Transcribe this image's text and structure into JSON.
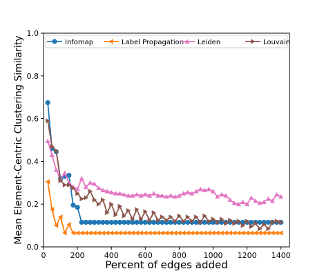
{
  "chart_data": {
    "type": "line",
    "xlabel": "Percent of edges added",
    "ylabel": "Mean Element-Centric Clustering Similarity",
    "xlim": [
      0,
      1450
    ],
    "ylim": [
      0.0,
      1.0
    ],
    "xticks": [
      0,
      200,
      400,
      600,
      800,
      1000,
      1200,
      1400
    ],
    "yticks": [
      0.0,
      0.2,
      0.4,
      0.6,
      0.8,
      1.0
    ],
    "ytick_labels": [
      "0.0",
      "0.2",
      "0.4",
      "0.6",
      "0.8",
      "1.0"
    ],
    "legend_position": "top",
    "series": [
      {
        "name": "Infomap",
        "color": "#1f77b4",
        "marker": "circle",
        "x": [
          25,
          50,
          75,
          100,
          125,
          150,
          175,
          200,
          225,
          250,
          275,
          300,
          325,
          350,
          375,
          400,
          425,
          450,
          475,
          500,
          525,
          550,
          575,
          600,
          625,
          650,
          675,
          700,
          725,
          750,
          775,
          800,
          825,
          850,
          875,
          900,
          925,
          950,
          975,
          1000,
          1025,
          1050,
          1075,
          1100,
          1125,
          1150,
          1175,
          1200,
          1225,
          1250,
          1275,
          1300,
          1325,
          1350,
          1375,
          1400
        ],
        "y": [
          0.675,
          0.46,
          0.445,
          0.32,
          0.33,
          0.335,
          0.195,
          0.185,
          0.115,
          0.115,
          0.115,
          0.115,
          0.115,
          0.115,
          0.115,
          0.115,
          0.115,
          0.115,
          0.115,
          0.115,
          0.115,
          0.115,
          0.115,
          0.115,
          0.115,
          0.115,
          0.115,
          0.115,
          0.115,
          0.115,
          0.115,
          0.115,
          0.115,
          0.115,
          0.115,
          0.115,
          0.115,
          0.115,
          0.115,
          0.115,
          0.115,
          0.115,
          0.115,
          0.115,
          0.115,
          0.115,
          0.115,
          0.115,
          0.115,
          0.115,
          0.115,
          0.115,
          0.115,
          0.115,
          0.115,
          0.115
        ]
      },
      {
        "name": "Label Propagation",
        "color": "#ff7f0e",
        "marker": "triangle-left",
        "x": [
          25,
          50,
          75,
          100,
          125,
          150,
          175,
          200,
          225,
          250,
          275,
          300,
          325,
          350,
          375,
          400,
          425,
          450,
          475,
          500,
          525,
          550,
          575,
          600,
          625,
          650,
          675,
          700,
          725,
          750,
          775,
          800,
          825,
          850,
          875,
          900,
          925,
          950,
          975,
          1000,
          1025,
          1050,
          1075,
          1100,
          1125,
          1150,
          1175,
          1200,
          1225,
          1250,
          1275,
          1300,
          1325,
          1350,
          1375,
          1400
        ],
        "y": [
          0.305,
          0.175,
          0.1,
          0.14,
          0.065,
          0.105,
          0.065,
          0.065,
          0.065,
          0.065,
          0.065,
          0.065,
          0.065,
          0.065,
          0.065,
          0.065,
          0.065,
          0.065,
          0.065,
          0.065,
          0.065,
          0.065,
          0.065,
          0.065,
          0.065,
          0.065,
          0.065,
          0.065,
          0.065,
          0.065,
          0.065,
          0.065,
          0.065,
          0.065,
          0.065,
          0.065,
          0.065,
          0.065,
          0.065,
          0.065,
          0.065,
          0.065,
          0.065,
          0.065,
          0.065,
          0.065,
          0.065,
          0.065,
          0.065,
          0.065,
          0.065,
          0.065,
          0.065,
          0.065,
          0.065,
          0.065
        ]
      },
      {
        "name": "Leiden",
        "color": "#e377c2",
        "marker": "triangle-up",
        "x": [
          25,
          50,
          75,
          100,
          125,
          150,
          175,
          200,
          225,
          250,
          275,
          300,
          325,
          350,
          375,
          400,
          425,
          450,
          475,
          500,
          525,
          550,
          575,
          600,
          625,
          650,
          675,
          700,
          725,
          750,
          775,
          800,
          825,
          850,
          875,
          900,
          925,
          950,
          975,
          1000,
          1025,
          1050,
          1075,
          1100,
          1125,
          1150,
          1175,
          1200,
          1225,
          1250,
          1275,
          1300,
          1325,
          1350,
          1375,
          1400
        ],
        "y": [
          0.495,
          0.43,
          0.36,
          0.315,
          0.345,
          0.3,
          0.28,
          0.27,
          0.32,
          0.28,
          0.3,
          0.295,
          0.275,
          0.265,
          0.26,
          0.255,
          0.25,
          0.25,
          0.245,
          0.24,
          0.24,
          0.245,
          0.24,
          0.245,
          0.24,
          0.25,
          0.24,
          0.24,
          0.235,
          0.24,
          0.235,
          0.24,
          0.25,
          0.255,
          0.25,
          0.26,
          0.27,
          0.265,
          0.27,
          0.26,
          0.235,
          0.245,
          0.24,
          0.22,
          0.205,
          0.2,
          0.21,
          0.2,
          0.23,
          0.215,
          0.205,
          0.21,
          0.225,
          0.215,
          0.245,
          0.235
        ]
      },
      {
        "name": "Louvain",
        "color": "#8c564b",
        "marker": "triangle-right",
        "x": [
          25,
          50,
          75,
          100,
          125,
          150,
          175,
          200,
          225,
          250,
          275,
          300,
          325,
          350,
          375,
          400,
          425,
          450,
          475,
          500,
          525,
          550,
          575,
          600,
          625,
          650,
          675,
          700,
          725,
          750,
          775,
          800,
          825,
          850,
          875,
          900,
          925,
          950,
          975,
          1000,
          1025,
          1050,
          1075,
          1100,
          1125,
          1150,
          1175,
          1200,
          1225,
          1250,
          1275,
          1300,
          1325,
          1350,
          1375,
          1400
        ],
        "y": [
          0.59,
          0.47,
          0.45,
          0.31,
          0.29,
          0.29,
          0.275,
          0.25,
          0.225,
          0.23,
          0.26,
          0.22,
          0.2,
          0.22,
          0.16,
          0.2,
          0.15,
          0.19,
          0.145,
          0.17,
          0.13,
          0.175,
          0.13,
          0.165,
          0.125,
          0.16,
          0.125,
          0.14,
          0.125,
          0.14,
          0.12,
          0.145,
          0.12,
          0.14,
          0.12,
          0.14,
          0.115,
          0.145,
          0.12,
          0.13,
          0.115,
          0.13,
          0.11,
          0.125,
          0.11,
          0.12,
          0.1,
          0.12,
          0.095,
          0.11,
          0.085,
          0.105,
          0.085,
          0.115,
          0.12,
          0.115
        ]
      }
    ]
  }
}
